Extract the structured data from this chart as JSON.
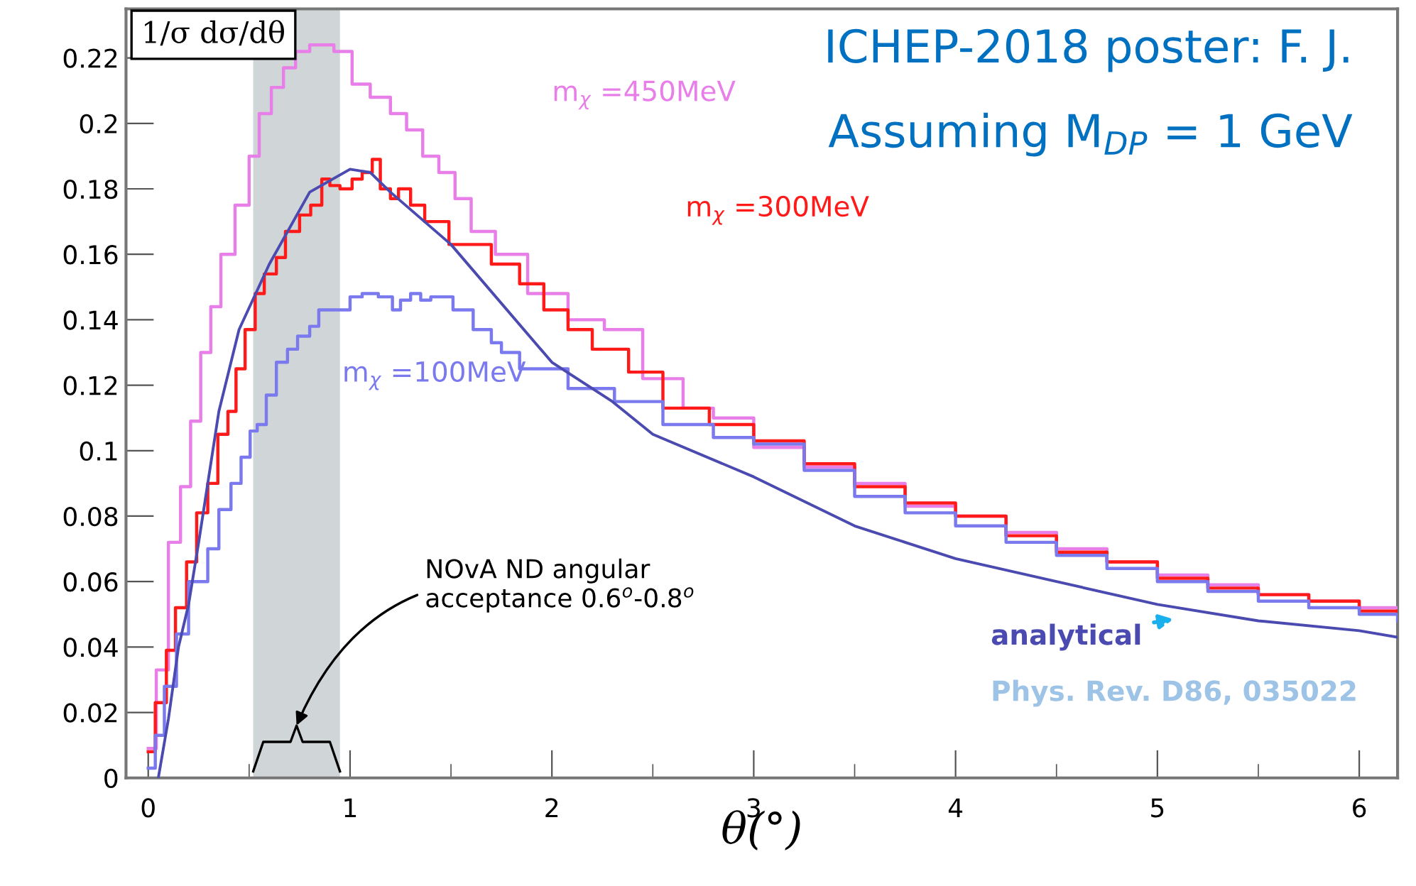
{
  "chart_data": {
    "type": "step",
    "title": "ICHEP-2018 poster: F. J.",
    "subtitle": "Assuming M$_{DP}$ = 1 GeV",
    "xlabel": "θ(°)",
    "ylabel": "1/σ dσ/dθ",
    "xlim": [
      -0.11,
      6.19
    ],
    "xticks": [
      0,
      1,
      2,
      3,
      4,
      5,
      6
    ],
    "ylim": [
      0,
      0.235
    ],
    "yticks": [
      0,
      0.02,
      0.04,
      0.06,
      0.08,
      0.1,
      0.12,
      0.14,
      0.16,
      0.18,
      0.2,
      0.22
    ],
    "grid": false,
    "legend": false,
    "marker": "none",
    "line_style": "solid",
    "bands": [
      {
        "axis": "x",
        "from": 0.52,
        "to": 0.95,
        "color": "#d0d6d8",
        "label": "NOvA ND angular\nacceptance 0.6$^{o}$-0.8$^{o}$"
      }
    ],
    "annotations": [
      "Phys. Rev. D86, 035022"
    ],
    "series": [
      {
        "name": "m$_{χ}$ =450MeV",
        "color": "#e87ee8",
        "x": [
          0,
          0.04,
          0.1,
          0.16,
          0.21,
          0.26,
          0.31,
          0.36,
          0.43,
          0.5,
          0.55,
          0.61,
          0.67,
          0.73,
          0.8,
          0.92,
          1.01,
          1.1,
          1.2,
          1.28,
          1.36,
          1.44,
          1.52,
          1.6,
          1.72,
          1.88,
          2.08,
          2.26,
          2.45,
          2.65,
          2.8,
          3.0,
          3.25,
          3.5,
          3.75,
          4.0,
          4.25,
          4.5,
          4.75,
          5.0,
          5.25,
          5.5,
          5.75,
          6.0,
          6.19
        ],
        "values": [
          0.009,
          0.033,
          0.072,
          0.089,
          0.109,
          0.13,
          0.144,
          0.16,
          0.175,
          0.19,
          0.203,
          0.211,
          0.217,
          0.222,
          0.224,
          0.222,
          0.212,
          0.208,
          0.203,
          0.198,
          0.19,
          0.185,
          0.177,
          0.167,
          0.16,
          0.148,
          0.14,
          0.137,
          0.122,
          0.113,
          0.11,
          0.101,
          0.095,
          0.09,
          0.083,
          0.08,
          0.075,
          0.07,
          0.066,
          0.062,
          0.059,
          0.056,
          0.054,
          0.052,
          0.052
        ]
      },
      {
        "name": "m$_{χ}$ =300MeV",
        "color": "#ff1a1a",
        "x": [
          0,
          0.035,
          0.09,
          0.135,
          0.19,
          0.24,
          0.295,
          0.345,
          0.395,
          0.435,
          0.48,
          0.53,
          0.575,
          0.635,
          0.68,
          0.75,
          0.805,
          0.86,
          0.9,
          0.95,
          1.01,
          1.06,
          1.11,
          1.15,
          1.2,
          1.24,
          1.3,
          1.37,
          1.49,
          1.7,
          1.84,
          1.96,
          2.08,
          2.2,
          2.38,
          2.55,
          2.78,
          3.0,
          3.25,
          3.5,
          3.75,
          4.0,
          4.25,
          4.5,
          4.75,
          5.0,
          5.25,
          5.5,
          5.75,
          6.0,
          6.19
        ],
        "values": [
          0.008,
          0.023,
          0.039,
          0.052,
          0.066,
          0.081,
          0.09,
          0.105,
          0.112,
          0.125,
          0.137,
          0.148,
          0.154,
          0.159,
          0.167,
          0.172,
          0.175,
          0.183,
          0.181,
          0.18,
          0.183,
          0.185,
          0.189,
          0.18,
          0.177,
          0.18,
          0.175,
          0.17,
          0.163,
          0.157,
          0.151,
          0.143,
          0.137,
          0.131,
          0.124,
          0.113,
          0.108,
          0.103,
          0.096,
          0.089,
          0.084,
          0.08,
          0.074,
          0.069,
          0.066,
          0.061,
          0.058,
          0.056,
          0.054,
          0.051,
          0.05
        ]
      },
      {
        "name": "m$_{χ}$ =100MeV",
        "color": "#7a7aee",
        "x": [
          0,
          0.035,
          0.08,
          0.14,
          0.2,
          0.295,
          0.35,
          0.41,
          0.46,
          0.505,
          0.54,
          0.585,
          0.635,
          0.69,
          0.74,
          0.8,
          0.845,
          1.0,
          1.06,
          1.14,
          1.21,
          1.25,
          1.3,
          1.35,
          1.4,
          1.51,
          1.61,
          1.7,
          1.75,
          1.84,
          2.08,
          2.31,
          2.55,
          2.8,
          3.0,
          3.25,
          3.5,
          3.75,
          4.0,
          4.25,
          4.5,
          4.75,
          5.0,
          5.25,
          5.5,
          5.75,
          6.0,
          6.19
        ],
        "values": [
          0.003,
          0.013,
          0.028,
          0.044,
          0.06,
          0.07,
          0.082,
          0.09,
          0.098,
          0.106,
          0.108,
          0.117,
          0.127,
          0.131,
          0.135,
          0.138,
          0.143,
          0.147,
          0.148,
          0.147,
          0.143,
          0.146,
          0.148,
          0.146,
          0.147,
          0.143,
          0.137,
          0.133,
          0.13,
          0.125,
          0.119,
          0.115,
          0.108,
          0.104,
          0.102,
          0.094,
          0.086,
          0.081,
          0.077,
          0.072,
          0.068,
          0.064,
          0.06,
          0.057,
          0.054,
          0.052,
          0.05,
          0.048
        ]
      },
      {
        "name": "analytical",
        "color": "#4a4ab0",
        "type": "line",
        "x": [
          0.05,
          0.1,
          0.15,
          0.2,
          0.25,
          0.3,
          0.35,
          0.45,
          0.6,
          0.8,
          1.0,
          1.1,
          1.2,
          1.5,
          2.0,
          2.3,
          2.5,
          3.0,
          3.5,
          4.0,
          4.5,
          5.0,
          5.5,
          6.0,
          6.19
        ],
        "values": [
          0,
          0.018,
          0.04,
          0.053,
          0.072,
          0.092,
          0.112,
          0.137,
          0.157,
          0.179,
          0.186,
          0.185,
          0.179,
          0.163,
          0.127,
          0.115,
          0.105,
          0.092,
          0.077,
          0.067,
          0.06,
          0.053,
          0.048,
          0.045,
          0.043
        ]
      }
    ]
  }
}
